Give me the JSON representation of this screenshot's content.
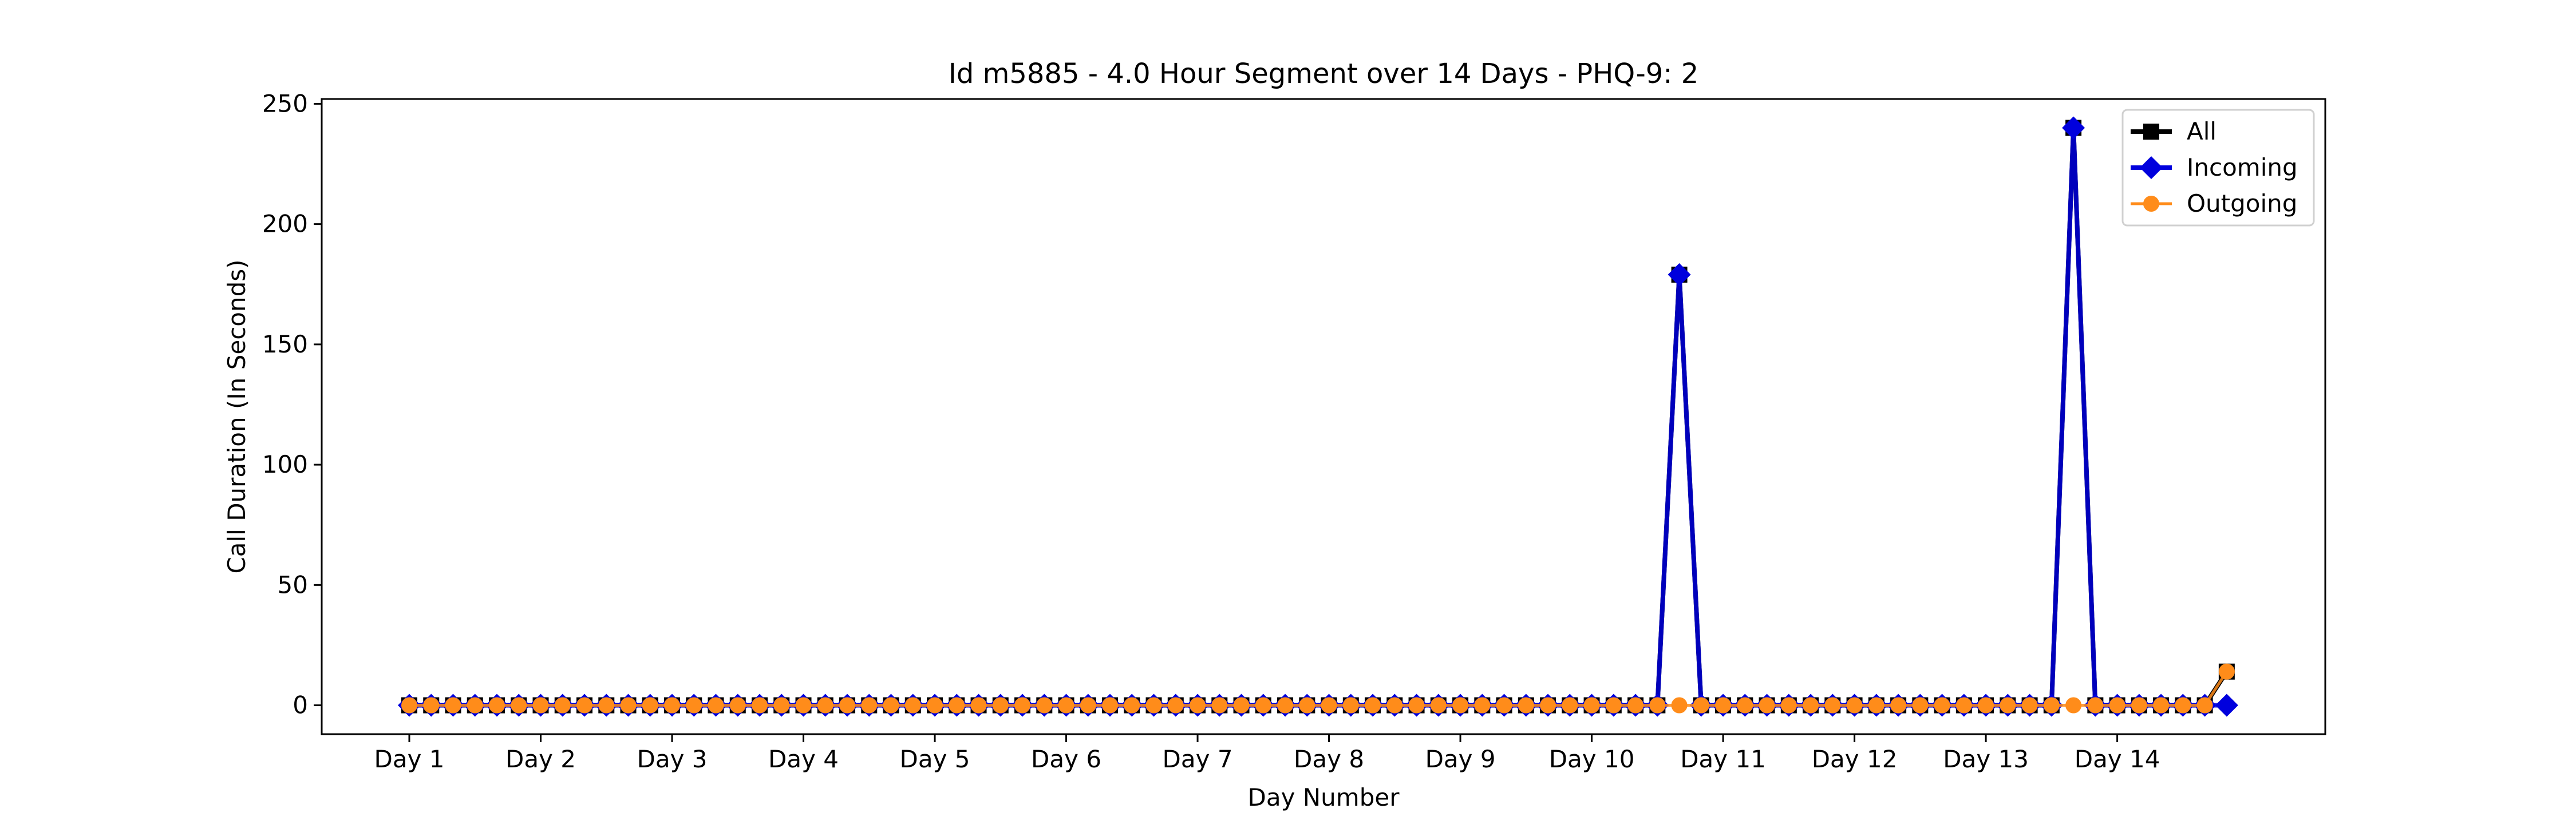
{
  "chart_data": {
    "type": "line",
    "title": "Id m5885 - 4.0 Hour Segment over 14 Days - PHQ-9: 2",
    "xlabel": "Day Number",
    "ylabel": "Call Duration (In Seconds)",
    "ylim": [
      -12,
      252
    ],
    "yticks": [
      0,
      50,
      100,
      150,
      200,
      250
    ],
    "xticks": [
      {
        "label": "Day 1",
        "index": 0
      },
      {
        "label": "Day 2",
        "index": 6
      },
      {
        "label": "Day 3",
        "index": 12
      },
      {
        "label": "Day 4",
        "index": 18
      },
      {
        "label": "Day 5",
        "index": 24
      },
      {
        "label": "Day 6",
        "index": 30
      },
      {
        "label": "Day 7",
        "index": 36
      },
      {
        "label": "Day 8",
        "index": 42
      },
      {
        "label": "Day 9",
        "index": 48
      },
      {
        "label": "Day 10",
        "index": 54
      },
      {
        "label": "Day 11",
        "index": 60
      },
      {
        "label": "Day 12",
        "index": 66
      },
      {
        "label": "Day 13",
        "index": 72
      },
      {
        "label": "Day 14",
        "index": 78
      }
    ],
    "xlim": [
      -4,
      87.5
    ],
    "legend_position": "top-right",
    "grid": false,
    "series": [
      {
        "name": "All",
        "color": "#000000",
        "marker": "square",
        "line_width": 8,
        "points": [
          [
            58,
            179
          ],
          [
            76,
            240
          ],
          [
            83,
            14
          ]
        ],
        "zero_span": [
          0,
          83
        ]
      },
      {
        "name": "Incoming",
        "color": "#0000dd",
        "marker": "diamond",
        "line_width": 8,
        "points": [
          [
            58,
            179
          ],
          [
            76,
            240
          ],
          [
            83,
            0
          ]
        ],
        "zero_span": [
          0,
          83
        ]
      },
      {
        "name": "Outgoing",
        "color": "#ff8c1a",
        "marker": "circle",
        "line_width": 5,
        "points": [
          [
            83,
            14
          ]
        ],
        "zero_span": [
          0,
          83
        ]
      }
    ]
  }
}
